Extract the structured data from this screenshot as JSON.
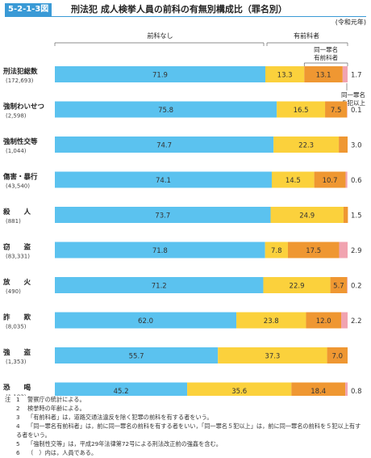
{
  "figure": {
    "number": "5-2-1-3図",
    "title": "刑法犯 成人検挙人員の前科の有無別構成比（罪名別）",
    "unit": "(令和元年)"
  },
  "chart_data": {
    "type": "bar",
    "orientation": "horizontal",
    "stacked": true,
    "xlim": [
      0,
      100
    ],
    "header_labels": {
      "no_record": "前科なし",
      "with_record": "有前科者",
      "same_record": "同一罪名\n有前科者",
      "same_5plus": "同一罪名\n５犯以上"
    },
    "series": [
      {
        "key": "no_record",
        "color": "#5bc2ef"
      },
      {
        "key": "other_record",
        "color": "#fbd13c"
      },
      {
        "key": "same_record",
        "color": "#ef9732"
      },
      {
        "key": "same_5plus",
        "color": "#f1a3b0"
      }
    ],
    "categories": [
      {
        "name": "刑法犯総数",
        "count": "(172,693)",
        "values": [
          71.9,
          13.3,
          13.1,
          1.7
        ],
        "labels": [
          "71.9",
          "13.3",
          "13.1",
          "1.7"
        ]
      },
      {
        "name": "強制わいせつ",
        "count": "(2,598)",
        "values": [
          75.8,
          16.5,
          7.5,
          0.1
        ],
        "labels": [
          "75.8",
          "16.5",
          "7.5",
          "0.1"
        ]
      },
      {
        "name": "強制性交等",
        "count": "(1,044)",
        "values": [
          74.7,
          22.3,
          3.0,
          0
        ],
        "labels": [
          "74.7",
          "22.3",
          "3.0",
          ""
        ]
      },
      {
        "name": "傷害・暴行",
        "count": "(43,540)",
        "values": [
          74.1,
          14.5,
          10.7,
          0.6
        ],
        "labels": [
          "74.1",
          "14.5",
          "10.7",
          "0.6"
        ]
      },
      {
        "name": "殺　　人",
        "count": "(881)",
        "values": [
          73.7,
          24.9,
          1.5,
          0
        ],
        "labels": [
          "73.7",
          "24.9",
          "1.5",
          ""
        ]
      },
      {
        "name": "窃　　盗",
        "count": "(83,331)",
        "values": [
          71.8,
          7.8,
          17.5,
          2.9
        ],
        "labels": [
          "71.8",
          "7.8",
          "17.5",
          "2.9"
        ]
      },
      {
        "name": "放　　火",
        "count": "(490)",
        "values": [
          71.2,
          22.9,
          5.7,
          0.2
        ],
        "labels": [
          "71.2",
          "22.9",
          "5.7",
          "0.2"
        ]
      },
      {
        "name": "詐　　欺",
        "count": "(8,035)",
        "values": [
          62.0,
          23.8,
          12.0,
          2.2
        ],
        "labels": [
          "62.0",
          "23.8",
          "12.0",
          "2.2"
        ]
      },
      {
        "name": "強　　盗",
        "count": "(1,353)",
        "values": [
          55.7,
          37.3,
          7.0,
          0
        ],
        "labels": [
          "55.7",
          "37.3",
          "7.0",
          ""
        ]
      },
      {
        "name": "恐　　喝",
        "count": "(1,182)",
        "values": [
          45.2,
          35.6,
          18.4,
          0.8
        ],
        "labels": [
          "45.2",
          "35.6",
          "18.4",
          "0.8"
        ]
      }
    ]
  },
  "notes": {
    "head": "注",
    "items": [
      {
        "num": "1",
        "text": "警察庁の統計による。"
      },
      {
        "num": "2",
        "text": "検挙時の年齢による。"
      },
      {
        "num": "3",
        "text": "「有前科者」は，道路交通法違反を除く犯罪の前科を有する者をいう。"
      },
      {
        "num": "4",
        "text": "「同一罪名有前科者」は，前に同一罪名の前科を有する者をいい，「同一罪名５犯以上」は，前に同一罪名の前科を５犯以上有する者をいう。"
      },
      {
        "num": "5",
        "text": "「強制性交等」は，平成29年法律第72号による刑法改正前の強姦を含む。"
      },
      {
        "num": "6",
        "text": "（　）内は，人員である。"
      }
    ]
  }
}
